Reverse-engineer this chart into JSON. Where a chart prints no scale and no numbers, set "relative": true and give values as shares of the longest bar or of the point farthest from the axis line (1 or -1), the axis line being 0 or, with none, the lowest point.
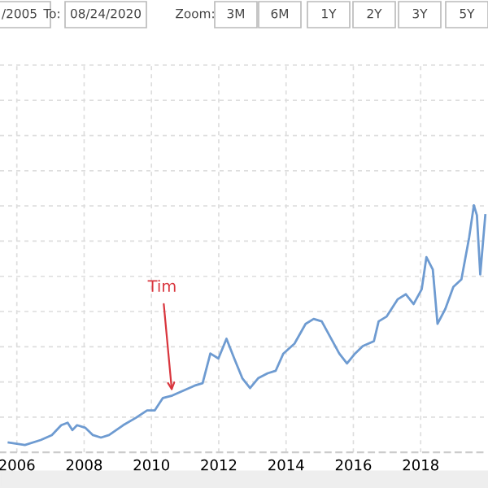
{
  "chart_data": {
    "type": "line",
    "relative": true,
    "tick_labels": "x",
    "grid": true,
    "legend": false,
    "xlim": [
      2005.5,
      2020.0
    ],
    "xticks": [
      2006,
      2008,
      2010,
      2012,
      2014,
      2016,
      2018
    ],
    "series": [
      {
        "color": "#6e9bd1",
        "x": [
          2005.76,
          2006.24,
          2006.71,
          2007.04,
          2007.32,
          2007.51,
          2007.65,
          2007.79,
          2008.03,
          2008.26,
          2008.5,
          2008.74,
          2009.16,
          2009.54,
          2009.87,
          2010.1,
          2010.34,
          2010.62,
          2010.95,
          2011.28,
          2011.52,
          2011.75,
          2011.99,
          2012.23,
          2012.46,
          2012.7,
          2012.93,
          2013.17,
          2013.45,
          2013.69,
          2013.92,
          2014.25,
          2014.58,
          2014.82,
          2015.06,
          2015.34,
          2015.58,
          2015.81,
          2016.05,
          2016.28,
          2016.61,
          2016.75,
          2016.99,
          2017.32,
          2017.56,
          2017.79,
          2018.03,
          2018.17,
          2018.36,
          2018.5,
          2018.73,
          2018.97,
          2019.21,
          2019.44,
          2019.58,
          2019.67,
          2019.77,
          2019.92
        ],
        "values": [
          0.04,
          0.03,
          0.05,
          0.07,
          0.11,
          0.12,
          0.09,
          0.11,
          0.1,
          0.07,
          0.06,
          0.07,
          0.11,
          0.14,
          0.17,
          0.17,
          0.22,
          0.23,
          0.25,
          0.27,
          0.28,
          0.4,
          0.38,
          0.46,
          0.38,
          0.3,
          0.26,
          0.3,
          0.32,
          0.33,
          0.4,
          0.44,
          0.52,
          0.54,
          0.53,
          0.46,
          0.4,
          0.36,
          0.4,
          0.43,
          0.45,
          0.53,
          0.55,
          0.62,
          0.64,
          0.6,
          0.66,
          0.79,
          0.74,
          0.52,
          0.58,
          0.67,
          0.7,
          0.87,
          1,
          0.96,
          0.72,
          0.96
        ]
      }
    ],
    "annotations": [
      {
        "text": "Tim",
        "x": 2010.62,
        "y": 0.23
      },
      "/2005",
      "To:",
      "08/24/2020",
      "Zoom:",
      "3M",
      "6M",
      "1Y",
      "2Y",
      "3Y",
      "5Y"
    ]
  }
}
